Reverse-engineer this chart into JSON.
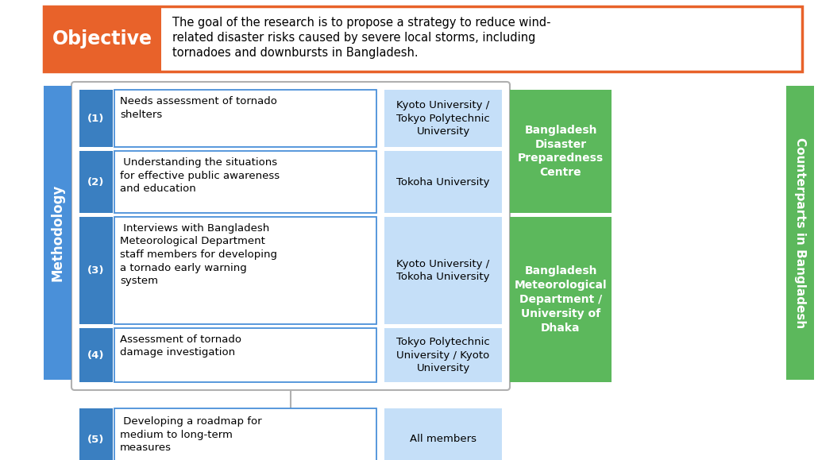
{
  "background_color": "#ffffff",
  "objective_box_color": "#E8622A",
  "objective_text": "Objective",
  "objective_content": "The goal of the research is to propose a strategy to reduce wind-\nrelated disaster risks caused by severe local storms, including\ntornadoes and downbursts in Bangladesh.",
  "methodology_color": "#4a90d9",
  "methodology_text": "Methodology",
  "counterparts_color": "#5cb85c",
  "counterparts_text": "Counterparts in Bangladesh",
  "num_label_color": "#3a7fc1",
  "main_box_border": "#4a90d9",
  "uni_box_color": "#c5dff8",
  "green_box_color": "#5cb85c",
  "items": [
    {
      "num": "(1)",
      "text": "Needs assessment of tornado\nshelters",
      "uni": "Kyoto University /\nTokyo Polytechnic\nUniversity",
      "group": 0
    },
    {
      "num": "(2)",
      "text": " Understanding the situations\nfor effective public awareness\nand education",
      "uni": "Tokoha University",
      "group": 0
    },
    {
      "num": "(3)",
      "text": " Interviews with Bangladesh\nMeteorological Department\nstaff members for developing\na tornado early warning\nsystem",
      "uni": "Kyoto University /\nTokoha University",
      "group": 1
    },
    {
      "num": "(4)",
      "text": "Assessment of tornado\ndamage investigation",
      "uni": "Tokyo Polytechnic\nUniversity / Kyoto\nUniversity",
      "group": 1
    }
  ],
  "item5": {
    "num": "(5)",
    "text": " Developing a roadmap for\nmedium to long-term\nmeasures",
    "uni": "All members"
  },
  "green_boxes": [
    {
      "text": "Bangladesh\nDisaster\nPreparedness\nCentre",
      "rows": [
        0,
        1
      ]
    },
    {
      "text": "Bangladesh\nMeteorological\nDepartment /\nUniversity of\nDhaka",
      "rows": [
        2,
        3
      ]
    }
  ]
}
